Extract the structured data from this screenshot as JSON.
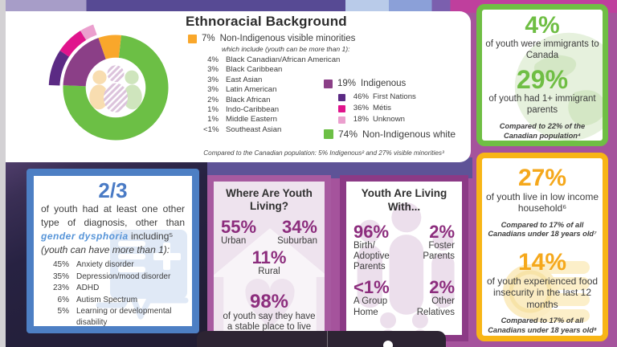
{
  "accents": {
    "green": "#6fbe44",
    "orange": "#f9a72b",
    "yellow": "#f5a81c",
    "indigenous_purple": "#8b3f87",
    "first_nations": "#5b2a84",
    "metis": "#e0148c",
    "unknown_pink": "#eb9fce",
    "stat_purple": "#8c2d7d",
    "blue": "#4d7fc4",
    "background_magenta": "#a5539c"
  },
  "ethno_card": {
    "title": "Ethnoracial Background",
    "legend": {
      "pct": "7%",
      "label": "Non-Indigenous visible minorities",
      "note": "which include (youth can be more than 1):",
      "items": [
        {
          "pct": "4%",
          "label": "Black Canadian/African American"
        },
        {
          "pct": "3%",
          "label": "Black Caribbean"
        },
        {
          "pct": "3%",
          "label": "East Asian"
        },
        {
          "pct": "3%",
          "label": "Latin American"
        },
        {
          "pct": "2%",
          "label": "Black African"
        },
        {
          "pct": "1%",
          "label": "Indo-Caribbean"
        },
        {
          "pct": "1%",
          "label": "Middle Eastern"
        },
        {
          "pct": "<1%",
          "label": "Southeast Asian"
        }
      ]
    },
    "indigenous": {
      "pct": "19%",
      "label": "Indigenous",
      "items": [
        {
          "pct": "46%",
          "label": "First Nations"
        },
        {
          "pct": "36%",
          "label": "Métis"
        },
        {
          "pct": "18%",
          "label": "Unknown"
        }
      ]
    },
    "white": {
      "pct": "74%",
      "label": "Non-Indigenous white"
    },
    "footnote": "Compared to the Canadian population: 5% Indigenous² and 27% visible minorities³"
  },
  "chart_data": {
    "type": "pie",
    "title": "Ethnoracial Background",
    "donut": true,
    "start_angle_deg": 6,
    "segments": [
      {
        "label": "Non-Indigenous white",
        "value": 74,
        "color": "#6cbf45"
      },
      {
        "label": "Indigenous",
        "value": 19,
        "color": "#8b3f87"
      },
      {
        "label": "Non-Indigenous visible minorities",
        "value": 7,
        "color": "#f9a72b"
      }
    ],
    "indigenous_breakdown": [
      {
        "label": "First Nations",
        "value": 46,
        "color": "#5b2a84"
      },
      {
        "label": "Métis",
        "value": 36,
        "color": "#e0148c"
      },
      {
        "label": "Unknown",
        "value": 18,
        "color": "#eb9fce"
      }
    ],
    "legend_position": "right"
  },
  "immigration_box": {
    "stat1_pct": "4%",
    "stat1_label": "of youth were immigrants to Canada",
    "stat2_pct": "29%",
    "stat2_label": "of youth had 1+ immigrant parents",
    "footnote": "Compared to 22% of the Canadian population⁴"
  },
  "diagnosis_box": {
    "stat": "2/3",
    "text_before": "of youth had at least one other type of diagnosis, other than",
    "text_highlight": "gender dysphoria",
    "text_after": "including⁵",
    "text_note": "(youth can have more than 1):",
    "items": [
      {
        "pct": "45%",
        "label": "Anxiety disorder"
      },
      {
        "pct": "35%",
        "label": "Depression/mood disorder"
      },
      {
        "pct": "23%",
        "label": "ADHD"
      },
      {
        "pct": "6%",
        "label": "Autism Spectrum"
      },
      {
        "pct": "5%",
        "label": "Learning or developmental disability"
      }
    ]
  },
  "living_box": {
    "title": "Where Are Youth Living?",
    "urban_pct": "55%",
    "urban_label": "Urban",
    "suburban_pct": "34%",
    "suburban_label": "Suburban",
    "rural_pct": "11%",
    "rural_label": "Rural",
    "stable_pct": "98%",
    "stable_label": "of youth say they have a stable place to live"
  },
  "living_with_box": {
    "title": "Youth Are Living With...",
    "stats": [
      {
        "pct": "96%",
        "label": "Birth/ Adoptive Parents"
      },
      {
        "pct": "2%",
        "label": "Foster Parents"
      },
      {
        "pct": "<1%",
        "label": "A Group Home"
      },
      {
        "pct": "2%",
        "label": "Other Relatives"
      }
    ]
  },
  "income_box": {
    "stat1_pct": "27%",
    "stat1_label": "of youth live in low income household⁶",
    "note1": "Compared to 17% of all Canadians under 18 years old⁷",
    "stat2_pct": "14%",
    "stat2_label": "of youth experienced food insecurity in the last 12 months",
    "note2": "Compared to 17% of all Canadians under 18 years old⁸"
  }
}
